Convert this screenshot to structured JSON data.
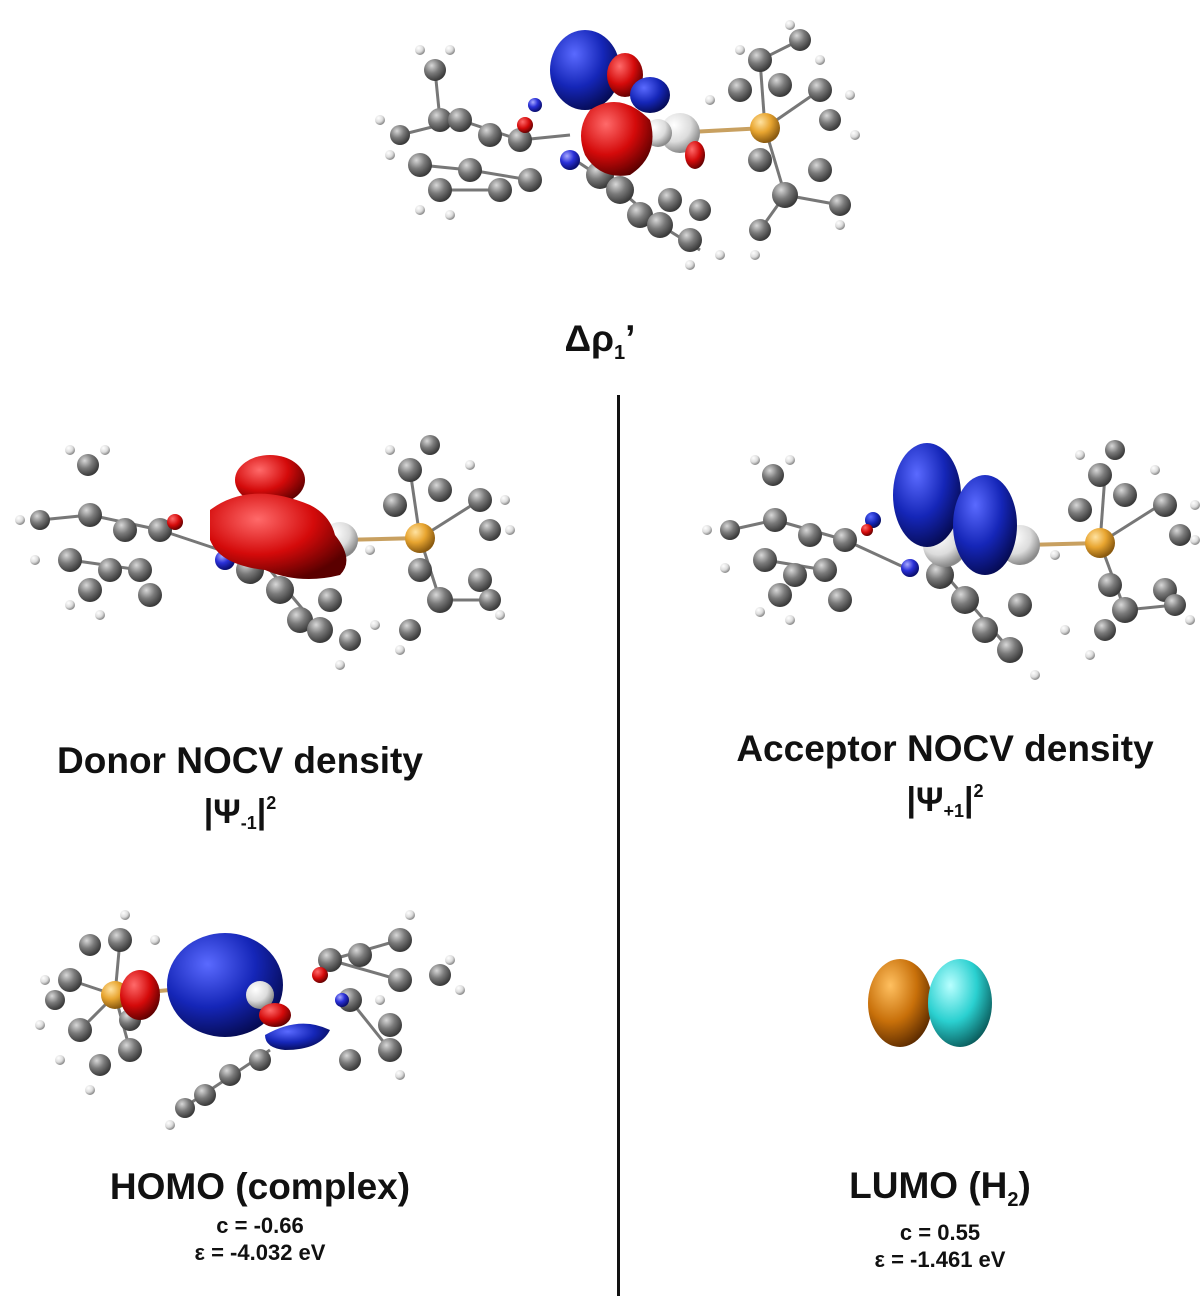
{
  "top": {
    "symbol": "Δρ",
    "subscript": "1",
    "prime": "’"
  },
  "donor": {
    "title": "Donor NOCV density",
    "psi_prefix": "|Ψ",
    "psi_sub": "-1",
    "psi_close": "|",
    "psi_sup": "2"
  },
  "acceptor": {
    "title": "Acceptor NOCV density",
    "psi_prefix": "|Ψ",
    "psi_sub": "+1",
    "psi_close": "|",
    "psi_sup": "2"
  },
  "homo": {
    "title": "HOMO (complex)",
    "coef": "c = -0.66",
    "energy": "ε = -4.032 eV"
  },
  "lumo": {
    "title_prefix": "LUMO (H",
    "title_sub": "2",
    "title_suffix": ")",
    "coef": "c = 0.55",
    "energy": "ε = -1.461 eV"
  },
  "colors": {
    "negative_lobe": "#1526b8",
    "positive_lobe": "#d40a0a",
    "carbon": "#6b6b6b",
    "hydrogen": "#e8e8e8",
    "phosphorus": "#e8a530",
    "nitrogen": "#2a30d8",
    "lumo_left": "#c8700a",
    "lumo_right": "#2ad0d0"
  }
}
